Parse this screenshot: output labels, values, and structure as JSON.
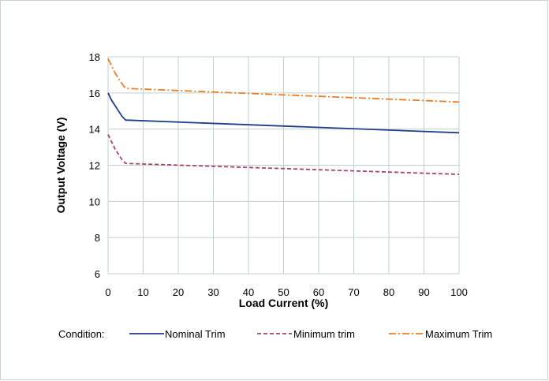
{
  "chart_data": {
    "type": "line",
    "xlabel": "Load Current (%)",
    "ylabel": "Output Voltage (V)",
    "xlim": [
      0,
      100
    ],
    "ylim": [
      6,
      18
    ],
    "xticks": [
      0,
      10,
      20,
      30,
      40,
      50,
      60,
      70,
      80,
      90,
      100
    ],
    "yticks": [
      6,
      8,
      10,
      12,
      14,
      16,
      18
    ],
    "grid": true,
    "legend": {
      "title": "Condition:",
      "position": "bottom"
    },
    "series": [
      {
        "name": "Nominal Trim",
        "color": "#1f3d8a",
        "style": "solid",
        "x": [
          0,
          1,
          2,
          3,
          4,
          5,
          100
        ],
        "y": [
          16.0,
          15.6,
          15.3,
          15.0,
          14.7,
          14.5,
          13.8
        ]
      },
      {
        "name": "Minimum trim",
        "color": "#a4456f",
        "style": "dashed",
        "x": [
          0,
          1,
          2,
          3,
          4,
          5,
          100
        ],
        "y": [
          13.7,
          13.3,
          12.9,
          12.6,
          12.3,
          12.1,
          11.5
        ]
      },
      {
        "name": "Maximum Trim",
        "color": "#ee7d22",
        "style": "dashdot",
        "x": [
          0,
          1,
          2,
          3,
          4,
          5,
          100
        ],
        "y": [
          17.9,
          17.5,
          17.1,
          16.8,
          16.5,
          16.25,
          15.5
        ]
      }
    ]
  }
}
